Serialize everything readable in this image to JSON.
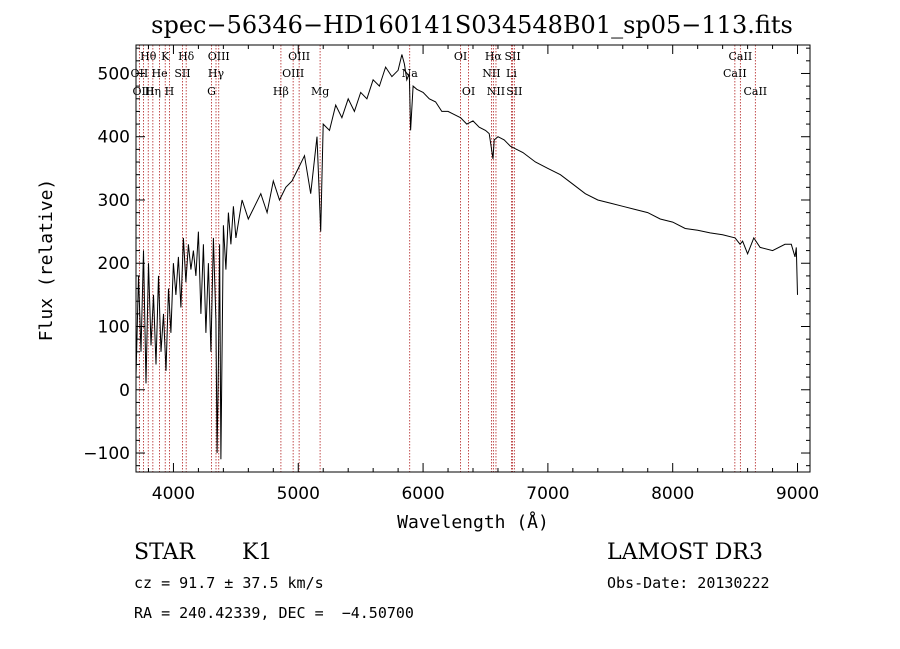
{
  "chart_data": {
    "type": "line",
    "title": "spec−56346−HD160141S034548B01_sp05−113.fits",
    "xlabel": "Wavelength (Å)",
    "ylabel": "Flux (relative)",
    "xlim": [
      3700,
      9100
    ],
    "ylim": [
      -130,
      545
    ],
    "xticks": [
      4000,
      5000,
      6000,
      7000,
      8000,
      9000
    ],
    "yticks": [
      -100,
      0,
      100,
      200,
      300,
      400,
      500
    ],
    "ytick_labels": [
      "−100",
      "0",
      "100",
      "200",
      "300",
      "400",
      "500"
    ],
    "grid": false,
    "spectrum": {
      "name": "flux",
      "x": [
        3700,
        3720,
        3740,
        3760,
        3780,
        3800,
        3820,
        3840,
        3860,
        3880,
        3900,
        3920,
        3940,
        3960,
        3980,
        4000,
        4020,
        4040,
        4060,
        4080,
        4100,
        4120,
        4140,
        4160,
        4180,
        4200,
        4220,
        4240,
        4260,
        4280,
        4300,
        4320,
        4340,
        4350,
        4360,
        4370,
        4380,
        4400,
        4420,
        4440,
        4460,
        4480,
        4500,
        4550,
        4600,
        4650,
        4700,
        4750,
        4800,
        4850,
        4900,
        4950,
        5000,
        5050,
        5100,
        5150,
        5180,
        5200,
        5250,
        5300,
        5350,
        5400,
        5450,
        5500,
        5550,
        5600,
        5650,
        5700,
        5750,
        5800,
        5830,
        5850,
        5870,
        5890,
        5900,
        5920,
        5950,
        6000,
        6050,
        6100,
        6150,
        6200,
        6250,
        6300,
        6350,
        6400,
        6450,
        6500,
        6530,
        6560,
        6570,
        6600,
        6650,
        6700,
        6750,
        6800,
        6900,
        7000,
        7100,
        7200,
        7300,
        7400,
        7500,
        7600,
        7700,
        7800,
        7900,
        8000,
        8100,
        8200,
        8300,
        8400,
        8500,
        8540,
        8560,
        8600,
        8650,
        8700,
        8800,
        8900,
        8950,
        8980,
        8990,
        9000
      ],
      "y": [
        20,
        180,
        60,
        220,
        10,
        200,
        70,
        150,
        40,
        180,
        60,
        120,
        30,
        160,
        90,
        200,
        150,
        210,
        130,
        240,
        170,
        230,
        190,
        220,
        180,
        250,
        120,
        230,
        90,
        200,
        60,
        240,
        110,
        -100,
        40,
        230,
        -110,
        260,
        190,
        280,
        230,
        290,
        240,
        300,
        270,
        290,
        310,
        280,
        330,
        300,
        320,
        330,
        350,
        370,
        310,
        400,
        250,
        420,
        410,
        450,
        430,
        460,
        440,
        470,
        460,
        490,
        480,
        510,
        495,
        505,
        530,
        515,
        490,
        500,
        410,
        480,
        475,
        470,
        460,
        455,
        440,
        440,
        435,
        430,
        420,
        425,
        415,
        410,
        405,
        365,
        395,
        400,
        395,
        385,
        380,
        375,
        360,
        350,
        340,
        325,
        310,
        300,
        295,
        290,
        285,
        280,
        270,
        265,
        255,
        252,
        248,
        245,
        240,
        230,
        235,
        215,
        240,
        225,
        220,
        230,
        230,
        210,
        225,
        150
      ]
    },
    "line_ids": [
      {
        "label": "Hθ",
        "x": 3798,
        "row": 1
      },
      {
        "label": "OII",
        "x": 3727,
        "row": 2
      },
      {
        "label": "OIII",
        "x": 3760,
        "row": 3
      },
      {
        "label": "K",
        "x": 3934,
        "row": 1
      },
      {
        "label": "He",
        "x": 3889,
        "row": 2
      },
      {
        "label": "Hη",
        "x": 3835,
        "row": 3
      },
      {
        "label": "Hδ",
        "x": 4102,
        "row": 1
      },
      {
        "label": "SII",
        "x": 4072,
        "row": 2
      },
      {
        "label": "H",
        "x": 3968,
        "row": 3
      },
      {
        "label": "OIII",
        "x": 4363,
        "row": 1
      },
      {
        "label": "Hγ",
        "x": 4341,
        "row": 2
      },
      {
        "label": "G",
        "x": 4305,
        "row": 3
      },
      {
        "label": "OIII",
        "x": 5007,
        "row": 1
      },
      {
        "label": "OIII",
        "x": 4959,
        "row": 2
      },
      {
        "label": "Hβ",
        "x": 4861,
        "row": 3
      },
      {
        "label": "Mg",
        "x": 5175,
        "row": 3
      },
      {
        "label": "Na",
        "x": 5893,
        "row": 2
      },
      {
        "label": "OI",
        "x": 6300,
        "row": 1
      },
      {
        "label": "OI",
        "x": 6364,
        "row": 3
      },
      {
        "label": "Hα",
        "x": 6563,
        "row": 1
      },
      {
        "label": "NII",
        "x": 6548,
        "row": 2
      },
      {
        "label": "NII",
        "x": 6584,
        "row": 3
      },
      {
        "label": "SII",
        "x": 6717,
        "row": 1
      },
      {
        "label": "Li",
        "x": 6708,
        "row": 2
      },
      {
        "label": "SII",
        "x": 6731,
        "row": 3
      },
      {
        "label": "CaII",
        "x": 8542,
        "row": 1
      },
      {
        "label": "CaII",
        "x": 8498,
        "row": 2
      },
      {
        "label": "CaII",
        "x": 8662,
        "row": 3
      }
    ],
    "line_color": "#000000",
    "marker_color": "#b22222"
  },
  "info": {
    "class": "STAR",
    "subclass": "K1",
    "survey": "LAMOST DR3",
    "cz": "cz = 91.7 ± 37.5 km/s",
    "obs_date": "Obs-Date: 20130222",
    "radec": "RA = 240.42339, DEC =  −4.50700"
  }
}
